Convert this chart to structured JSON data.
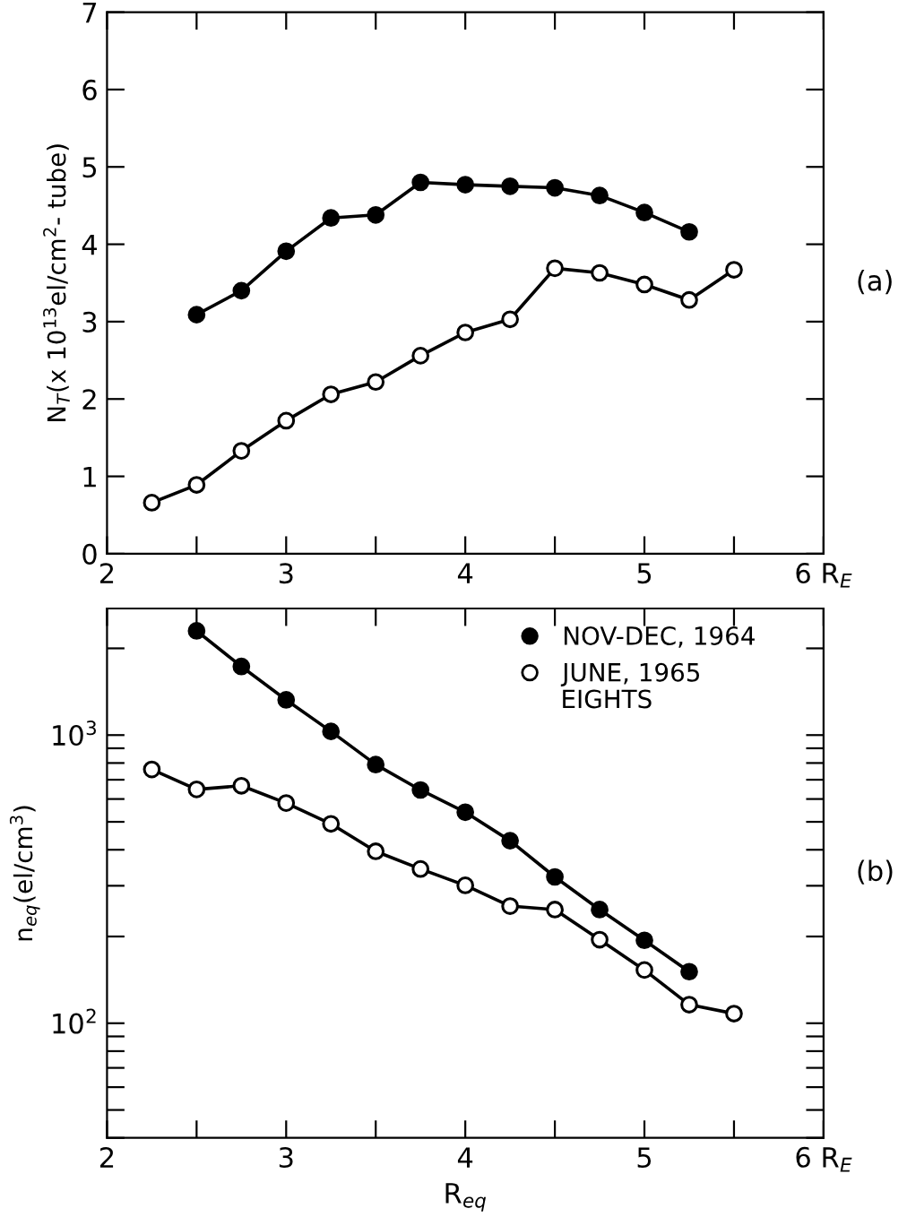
{
  "chart_data": [
    {
      "type": "line",
      "ylabel": "N$_{T}$(x 10$^{13}$el/cm$^{2}$- tube)",
      "annotations": [
        "(a)"
      ],
      "marker": "circle",
      "line_style": "solid",
      "grid": false,
      "legend": false,
      "xlim": [
        2,
        6
      ],
      "xticks": [
        2,
        {
          "value": 2.5,
          "label": null
        },
        3,
        {
          "value": 3.5,
          "label": null
        },
        4,
        {
          "value": 4.5,
          "label": null
        },
        5,
        {
          "value": 5.5,
          "label": null
        },
        {
          "value": 6,
          "label": "6 R$_{E}$"
        }
      ],
      "ylim": [
        0,
        7
      ],
      "yticks": [
        0,
        1,
        2,
        3,
        4,
        5,
        6,
        7
      ],
      "series": [
        {
          "color": "#000000",
          "x": [
            2.5,
            2.75,
            3.0,
            3.25,
            3.5,
            3.75,
            4.0,
            4.25,
            4.5,
            4.75,
            5.0,
            5.25
          ],
          "values": [
            3.09,
            3.4,
            3.91,
            4.34,
            4.38,
            4.8,
            4.77,
            4.75,
            4.73,
            4.63,
            4.41,
            4.16
          ]
        },
        {
          "color": "#000000",
          "x": [
            2.25,
            2.5,
            2.75,
            3.0,
            3.25,
            3.5,
            3.75,
            4.0,
            4.25,
            4.5,
            4.75,
            5.0,
            5.25,
            5.5
          ],
          "values": [
            0.66,
            0.89,
            1.33,
            1.72,
            2.06,
            2.22,
            2.56,
            2.86,
            3.03,
            3.69,
            3.63,
            3.48,
            3.28,
            3.67
          ]
        }
      ]
    },
    {
      "type": "line",
      "ylabel": "n$_{eq}$(el/cm$^{3}$)",
      "xlabel": "R$_{eq}$",
      "annotations": [
        "EIGHTS",
        "(b)"
      ],
      "marker": "circle",
      "line_style": "solid",
      "grid": false,
      "legend": "top right",
      "log": "y",
      "xlim": [
        2,
        6
      ],
      "xticks": [
        2,
        {
          "value": 2.5,
          "label": null
        },
        3,
        {
          "value": 3.5,
          "label": null
        },
        4,
        {
          "value": 4.5,
          "label": null
        },
        5,
        {
          "value": 5.5,
          "label": null
        },
        {
          "value": 6,
          "label": "6 R$_{E}$"
        }
      ],
      "ylim": [
        40,
        2750
      ],
      "yticks": [
        {
          "value": 40,
          "label": null
        },
        {
          "value": 50,
          "label": null
        },
        {
          "value": 60,
          "label": null
        },
        {
          "value": 70,
          "label": null
        },
        {
          "value": 80,
          "label": null
        },
        {
          "value": 90,
          "label": null
        },
        {
          "value": 100,
          "label": "10$^{2}$"
        },
        {
          "value": 200,
          "label": null
        },
        {
          "value": 300,
          "label": null
        },
        {
          "value": 400,
          "label": null
        },
        {
          "value": 500,
          "label": null
        },
        {
          "value": 600,
          "label": null
        },
        {
          "value": 700,
          "label": null
        },
        {
          "value": 800,
          "label": null
        },
        {
          "value": 900,
          "label": null
        },
        {
          "value": 1000,
          "label": "10$^{3}$"
        },
        {
          "value": 2000,
          "label": null
        }
      ],
      "series": [
        {
          "name": "NOV-DEC, 1964",
          "color": "#000000",
          "x": [
            2.5,
            2.75,
            3.0,
            3.25,
            3.5,
            3.75,
            4.0,
            4.25,
            4.5,
            4.75,
            5.0,
            5.25
          ],
          "values": [
            2300,
            1730,
            1325,
            1030,
            790,
            645,
            540,
            430,
            322,
            248,
            194,
            151
          ]
        },
        {
          "name": "JUNE, 1965",
          "color": "#000000",
          "x": [
            2.25,
            2.5,
            2.75,
            3.0,
            3.25,
            3.5,
            3.75,
            4.0,
            4.25,
            4.5,
            4.75,
            5.0,
            5.25,
            5.5
          ],
          "values": [
            760,
            648,
            667,
            581,
            492,
            395,
            343,
            301,
            255,
            248,
            195,
            153,
            116,
            108
          ]
        }
      ]
    }
  ]
}
